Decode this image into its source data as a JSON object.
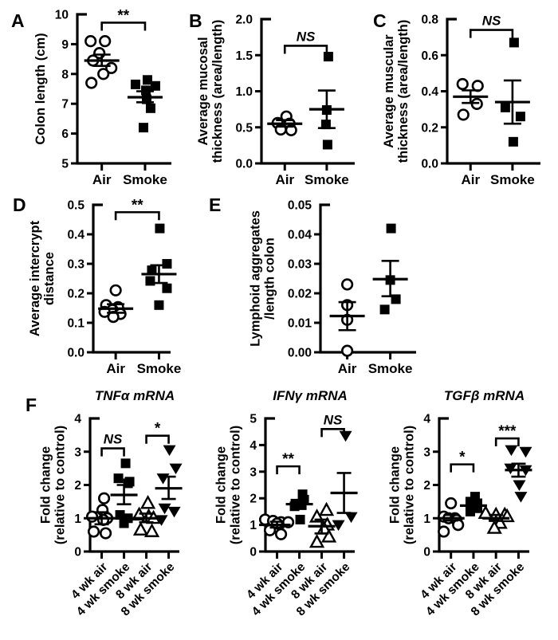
{
  "figure_title": "",
  "colors": {
    "ink": "#000000",
    "background": "#ffffff"
  },
  "chart_data": {
    "type": "scatter",
    "style": "column-scatter-with-mean-sem",
    "panels": [
      {
        "id": "A",
        "letter": "A",
        "title": "",
        "ylabel_lines": [
          "Colon length (cm)"
        ],
        "ylim": [
          5,
          10
        ],
        "ytick_values": [
          5,
          6,
          7,
          8,
          9,
          10
        ],
        "ytick_labels": [
          "5",
          "6",
          "7",
          "8",
          "9",
          "10"
        ],
        "groups": [
          {
            "label": "Air",
            "marker": "circle-open",
            "values": [
              9.1,
              9.1,
              8.7,
              8.45,
              8.2,
              8.0,
              7.7
            ],
            "jitter": [
              -14,
              4,
              -3,
              -11,
              12,
              2,
              -13
            ],
            "mean": 8.45,
            "err_lo": 8.27,
            "err_hi": 8.65
          },
          {
            "label": "Smoke",
            "marker": "square-filled",
            "values": [
              7.8,
              7.65,
              7.6,
              7.45,
              7.15,
              6.85,
              6.2
            ],
            "jitter": [
              3,
              -12,
              13,
              1,
              2,
              7,
              -2
            ],
            "mean": 7.22,
            "err_lo": 7.05,
            "err_hi": 7.42
          }
        ],
        "significance": [
          {
            "g1": 0,
            "g2": 1,
            "label": "**",
            "style": "asterisk",
            "y": 9.72
          }
        ]
      },
      {
        "id": "B",
        "letter": "B",
        "title": "",
        "ylabel_lines": [
          "Average mucosal",
          "thickness (area/length)"
        ],
        "ylim": [
          0,
          2
        ],
        "ytick_values": [
          0,
          0.5,
          1.0,
          1.5,
          2.0
        ],
        "ytick_labels": [
          "0.0",
          "0.5",
          "1.0",
          "1.5",
          "2.0"
        ],
        "groups": [
          {
            "label": "Air",
            "marker": "circle-open",
            "values": [
              0.65,
              0.56,
              0.55,
              0.47,
              0.46
            ],
            "jitter": [
              2,
              -9,
              6,
              -5,
              8
            ],
            "mean": 0.55,
            "err_lo": 0.51,
            "err_hi": 0.6
          },
          {
            "label": "Smoke",
            "marker": "square-filled",
            "values": [
              1.48,
              0.74,
              0.54,
              0.26
            ],
            "jitter": [
              2,
              0,
              -1,
              1
            ],
            "mean": 0.75,
            "err_lo": 0.49,
            "err_hi": 1.01
          }
        ],
        "significance": [
          {
            "g1": 0,
            "g2": 1,
            "label": "NS",
            "style": "ns",
            "y": 1.63
          }
        ]
      },
      {
        "id": "C",
        "letter": "C",
        "title": "",
        "ylabel_lines": [
          "Average muscular",
          "thickness (area/length)"
        ],
        "ylim": [
          0,
          0.8
        ],
        "ytick_values": [
          0,
          0.2,
          0.4,
          0.6,
          0.8
        ],
        "ytick_labels": [
          "0.0",
          "0.2",
          "0.4",
          "0.6",
          "0.8"
        ],
        "groups": [
          {
            "label": "Air",
            "marker": "circle-open",
            "values": [
              0.44,
              0.43,
              0.33,
              0.27
            ],
            "jitter": [
              -10,
              9,
              8,
              -9
            ],
            "mean": 0.37,
            "err_lo": 0.335,
            "err_hi": 0.405
          },
          {
            "label": "Smoke",
            "marker": "square-filled",
            "values": [
              0.67,
              0.31,
              0.26,
              0.12
            ],
            "jitter": [
              2,
              -9,
              10,
              1
            ],
            "mean": 0.34,
            "err_lo": 0.22,
            "err_hi": 0.46
          }
        ],
        "significance": [
          {
            "g1": 0,
            "g2": 1,
            "label": "NS",
            "style": "ns",
            "y": 0.74
          }
        ]
      },
      {
        "id": "D",
        "letter": "D",
        "title": "",
        "ylabel_lines": [
          "Average intercrypt",
          "distance"
        ],
        "ylim": [
          0,
          0.5
        ],
        "ytick_values": [
          0,
          0.1,
          0.2,
          0.3,
          0.4,
          0.5
        ],
        "ytick_labels": [
          "0.0",
          "0.1",
          "0.2",
          "0.3",
          "0.4",
          "0.5"
        ],
        "groups": [
          {
            "label": "Air",
            "marker": "circle-open",
            "values": [
              0.21,
              0.16,
              0.153,
              0.144,
              0.137,
              0.13,
              0.12
            ],
            "jitter": [
              0,
              -12,
              3,
              -4,
              -14,
              6,
              -3
            ],
            "mean": 0.148,
            "err_lo": 0.134,
            "err_hi": 0.163
          },
          {
            "label": "Smoke",
            "marker": "square-filled",
            "values": [
              0.42,
              0.3,
              0.278,
              0.242,
              0.217,
              0.16
            ],
            "jitter": [
              1,
              10,
              -9,
              -11,
              10,
              0
            ],
            "mean": 0.265,
            "err_lo": 0.235,
            "err_hi": 0.295
          }
        ],
        "significance": [
          {
            "g1": 0,
            "g2": 1,
            "label": "**",
            "style": "asterisk",
            "y": 0.475
          }
        ]
      },
      {
        "id": "E",
        "letter": "E",
        "title": "",
        "ylabel_lines": [
          "Lymphoid aggregates",
          "/length colon"
        ],
        "ylim": [
          0,
          0.05
        ],
        "ytick_values": [
          0,
          0.01,
          0.02,
          0.03,
          0.04,
          0.05
        ],
        "ytick_labels": [
          "0.00",
          "0.01",
          "0.02",
          "0.03",
          "0.04",
          "0.05"
        ],
        "groups": [
          {
            "label": "Air",
            "marker": "circle-open",
            "values": [
              0.023,
              0.016,
              0.011,
              0.0005
            ],
            "jitter": [
              0,
              0,
              0,
              0
            ],
            "mean": 0.0123,
            "err_lo": 0.0075,
            "err_hi": 0.017
          },
          {
            "label": "Smoke",
            "marker": "square-filled",
            "values": [
              0.042,
              0.0245,
              0.018,
              0.0145
            ],
            "jitter": [
              1,
              0,
              7,
              -7
            ],
            "mean": 0.0248,
            "err_lo": 0.019,
            "err_hi": 0.031
          }
        ],
        "significance": []
      },
      {
        "id": "F1",
        "letter": "F",
        "title": "TNFα mRNA",
        "ylabel_lines": [
          "Fold change",
          "(relative to control)"
        ],
        "ylim": [
          0,
          4
        ],
        "ytick_values": [
          0,
          1,
          2,
          3,
          4
        ],
        "ytick_labels": [
          "0",
          "1",
          "2",
          "3",
          "4"
        ],
        "groups": [
          {
            "label": "4 wk air",
            "marker": "circle-open",
            "values": [
              1.6,
              1.25,
              1.05,
              1.0,
              0.95,
              0.6,
              0.55
            ],
            "jitter": [
              3,
              1,
              -12,
              7,
              2,
              -10,
              5
            ],
            "mean": 1.0,
            "err_lo": 0.82,
            "err_hi": 1.18
          },
          {
            "label": "4 wk smoke",
            "marker": "square-filled",
            "values": [
              2.65,
              2.2,
              2.1,
              2.05,
              1.1,
              1.0,
              0.85
            ],
            "jitter": [
              2,
              -7,
              7,
              5,
              -5,
              5,
              0
            ],
            "mean": 1.7,
            "err_lo": 1.42,
            "err_hi": 2.0
          },
          {
            "label": "8 wk air",
            "marker": "triangle-open",
            "values": [
              1.45,
              1.1,
              1.05,
              1.0,
              0.65,
              0.6
            ],
            "jitter": [
              2,
              -9,
              3,
              9,
              -7,
              7
            ],
            "mean": 1.0,
            "err_lo": 0.88,
            "err_hi": 1.14
          },
          {
            "label": "8 wk smoke",
            "marker": "triangle-down-filled",
            "values": [
              3.05,
              2.5,
              2.2,
              1.3,
              1.2,
              0.95
            ],
            "jitter": [
              1,
              9,
              -7,
              -5,
              7,
              -9
            ],
            "mean": 1.9,
            "err_lo": 1.58,
            "err_hi": 2.25
          }
        ],
        "significance": [
          {
            "g1": 0,
            "g2": 1,
            "label": "NS",
            "style": "ns",
            "y": 3.1
          },
          {
            "g1": 2,
            "g2": 3,
            "label": "*",
            "style": "asterisk",
            "y": 3.48
          }
        ]
      },
      {
        "id": "F2",
        "letter": "",
        "title": "IFNγ mRNA",
        "ylabel_lines": [
          "Fold change",
          "(relative to control)"
        ],
        "ylim": [
          0,
          5
        ],
        "ytick_values": [
          0,
          1,
          2,
          3,
          4,
          5
        ],
        "ytick_labels": [
          "0",
          "1",
          "2",
          "3",
          "4",
          "5"
        ],
        "groups": [
          {
            "label": "4 wk air",
            "marker": "circle-open",
            "values": [
              1.2,
              1.15,
              1.1,
              1.1,
              1.05,
              0.8,
              0.65
            ],
            "jitter": [
              -15,
              -5,
              5,
              14,
              0,
              -9,
              5
            ],
            "mean": 1.0,
            "err_lo": 0.9,
            "err_hi": 1.12
          },
          {
            "label": "4 wk smoke",
            "marker": "square-filled",
            "values": [
              2.15,
              1.95,
              1.8,
              1.75,
              1.7,
              1.2
            ],
            "jitter": [
              4,
              6,
              -5,
              3,
              -6,
              1
            ],
            "mean": 1.78,
            "err_lo": 1.6,
            "err_hi": 1.93
          },
          {
            "label": "8 wk air",
            "marker": "triangle-open",
            "values": [
              1.55,
              1.3,
              1.0,
              0.85,
              0.55,
              0.35
            ],
            "jitter": [
              6,
              -6,
              7,
              3,
              9,
              -6
            ],
            "mean": 0.95,
            "err_lo": 0.68,
            "err_hi": 1.2
          },
          {
            "label": "8 wk smoke",
            "marker": "triangle-down-filled",
            "values": [
              4.35,
              1.3,
              1.0
            ],
            "jitter": [
              2,
              9,
              -7
            ],
            "mean": 2.2,
            "err_lo": 1.45,
            "err_hi": 2.95
          }
        ],
        "significance": [
          {
            "g1": 0,
            "g2": 1,
            "label": "**",
            "style": "asterisk",
            "y": 3.2
          },
          {
            "g1": 2,
            "g2": 3,
            "label": "NS",
            "style": "ns",
            "y": 4.6
          }
        ]
      },
      {
        "id": "F3",
        "letter": "",
        "title": "TGFβ mRNA",
        "ylabel_lines": [
          "Fold change",
          "(relative to control)"
        ],
        "ylim": [
          0,
          4
        ],
        "ytick_values": [
          0,
          1,
          2,
          3,
          4
        ],
        "ytick_labels": [
          "0",
          "1",
          "2",
          "3",
          "4"
        ],
        "groups": [
          {
            "label": "4 wk air",
            "marker": "circle-open",
            "values": [
              1.45,
              1.05,
              1.0,
              1.0,
              0.95,
              0.8,
              0.6
            ],
            "jitter": [
              0,
              -9,
              5,
              -3,
              7,
              9,
              -9
            ],
            "mean": 1.0,
            "err_lo": 0.93,
            "err_hi": 1.1
          },
          {
            "label": "4 wk smoke",
            "marker": "square-filled",
            "values": [
              1.65,
              1.5,
              1.45,
              1.35,
              1.3,
              1.2
            ],
            "jitter": [
              2,
              -4,
              5,
              -3,
              5,
              -4
            ],
            "mean": 1.38,
            "err_lo": 1.24,
            "err_hi": 1.52
          },
          {
            "label": "8 wk air",
            "marker": "triangle-open",
            "values": [
              1.15,
              1.1,
              1.1,
              1.05,
              0.85,
              0.7
            ],
            "jitter": [
              -13,
              0,
              11,
              14,
              5,
              -2
            ],
            "mean": 1.0,
            "err_lo": 0.92,
            "err_hi": 1.1
          },
          {
            "label": "8 wk smoke",
            "marker": "triangle-down-filled",
            "values": [
              3.05,
              3.0,
              2.5,
              2.45,
              2.0,
              1.65
            ],
            "jitter": [
              -9,
              9,
              -10,
              9,
              1,
              3
            ],
            "mean": 2.45,
            "err_lo": 2.25,
            "err_hi": 2.64
          }
        ],
        "significance": [
          {
            "g1": 0,
            "g2": 1,
            "label": "*",
            "style": "asterisk",
            "y": 2.62
          },
          {
            "g1": 2,
            "g2": 3,
            "label": "***",
            "style": "asterisk",
            "y": 3.4
          }
        ]
      }
    ]
  }
}
